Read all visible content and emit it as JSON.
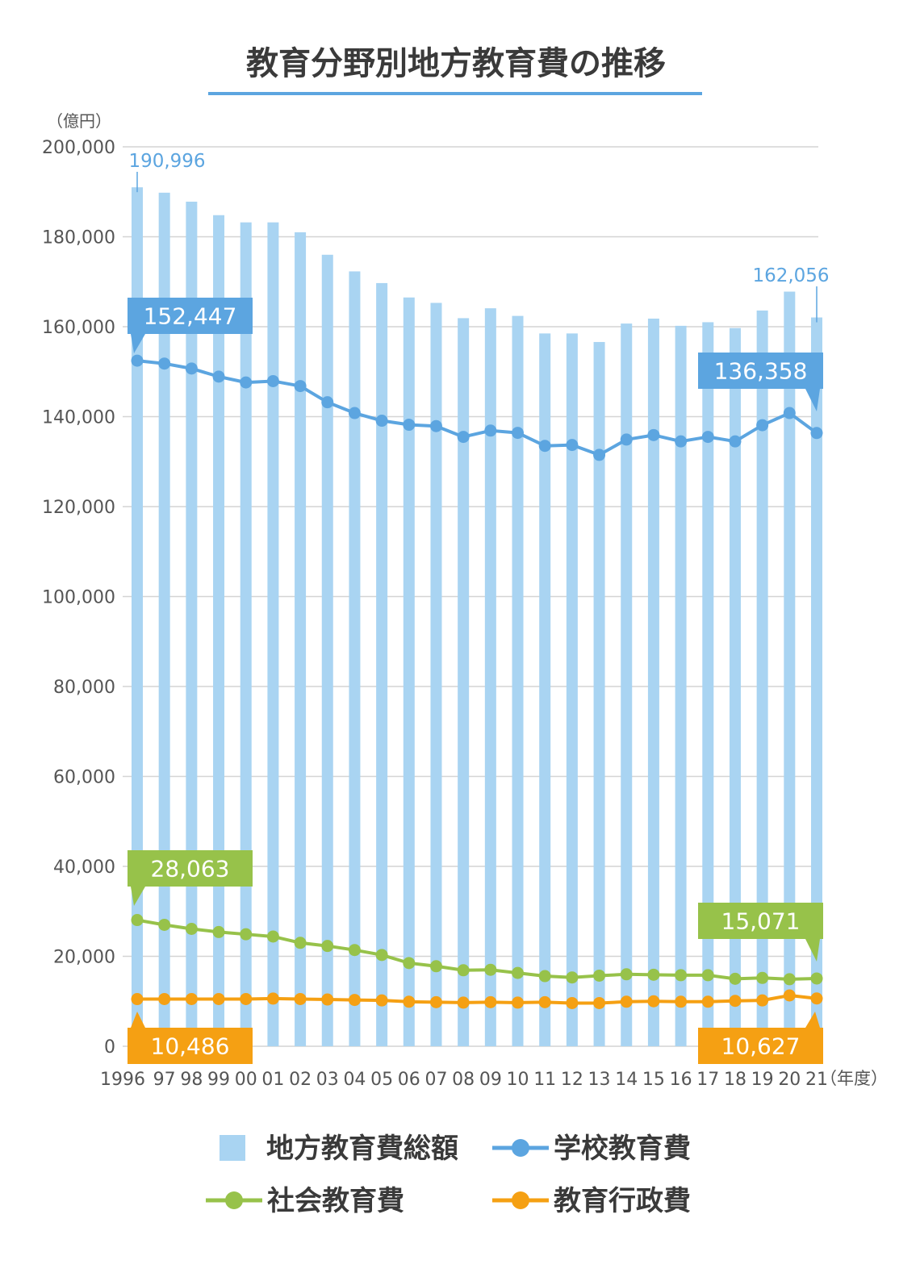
{
  "chart_data": {
    "type": "bar+line",
    "title": "教育分野別地方教育費の推移",
    "ylabel": "（億円）",
    "xlabel": "（年度）",
    "ylim": [
      0,
      200000
    ],
    "yticks": [
      "0",
      "20,000",
      "40,000",
      "60,000",
      "80,000",
      "100,000",
      "120,000",
      "140,000",
      "160,000",
      "180,000",
      "200,000"
    ],
    "categories": [
      "1996",
      "97",
      "98",
      "99",
      "00",
      "01",
      "02",
      "03",
      "04",
      "05",
      "06",
      "07",
      "08",
      "09",
      "10",
      "11",
      "12",
      "13",
      "14",
      "15",
      "16",
      "17",
      "18",
      "19",
      "20",
      "21"
    ],
    "grid": true,
    "legend_position": "bottom",
    "series": [
      {
        "name": "地方教育費総額",
        "kind": "bar",
        "color": "#a9d4f2",
        "values": [
          190996,
          189800,
          187800,
          184800,
          183200,
          183200,
          181000,
          176000,
          172300,
          169700,
          166500,
          165300,
          161900,
          164100,
          162400,
          158500,
          158500,
          156600,
          160700,
          161800,
          160200,
          161000,
          159700,
          163600,
          167800,
          162056
        ]
      },
      {
        "name": "学校教育費",
        "kind": "line",
        "color": "#5ca5e0",
        "values": [
          152447,
          151800,
          150700,
          148900,
          147600,
          147900,
          146800,
          143200,
          140800,
          139100,
          138200,
          137900,
          135500,
          136900,
          136400,
          133500,
          133700,
          131500,
          134900,
          135900,
          134500,
          135500,
          134500,
          138100,
          140800,
          136358
        ]
      },
      {
        "name": "社会教育費",
        "kind": "line",
        "color": "#97c24a",
        "values": [
          28063,
          27000,
          26100,
          25400,
          24900,
          24400,
          23000,
          22300,
          21400,
          20300,
          18500,
          17800,
          16900,
          17000,
          16300,
          15600,
          15300,
          15700,
          16000,
          15900,
          15800,
          15800,
          15000,
          15200,
          14900,
          15071
        ]
      },
      {
        "name": "教育行政費",
        "kind": "line",
        "color": "#f5a013",
        "values": [
          10486,
          10500,
          10500,
          10500,
          10500,
          10600,
          10500,
          10400,
          10300,
          10200,
          9900,
          9800,
          9700,
          9800,
          9700,
          9800,
          9600,
          9600,
          9900,
          10000,
          9900,
          9900,
          10100,
          10200,
          11300,
          10627
        ]
      }
    ],
    "annotations": [
      {
        "series": "地方教育費総額",
        "index": 0,
        "label": "190,996",
        "style": "text"
      },
      {
        "series": "地方教育費総額",
        "index": 25,
        "label": "162,056",
        "style": "text"
      },
      {
        "series": "学校教育費",
        "index": 0,
        "label": "152,447",
        "style": "box"
      },
      {
        "series": "学校教育費",
        "index": 25,
        "label": "136,358",
        "style": "box"
      },
      {
        "series": "社会教育費",
        "index": 0,
        "label": "28,063",
        "style": "box"
      },
      {
        "series": "社会教育費",
        "index": 25,
        "label": "15,071",
        "style": "box"
      },
      {
        "series": "教育行政費",
        "index": 0,
        "label": "10,486",
        "style": "box"
      },
      {
        "series": "教育行政費",
        "index": 25,
        "label": "10,627",
        "style": "box"
      }
    ]
  }
}
